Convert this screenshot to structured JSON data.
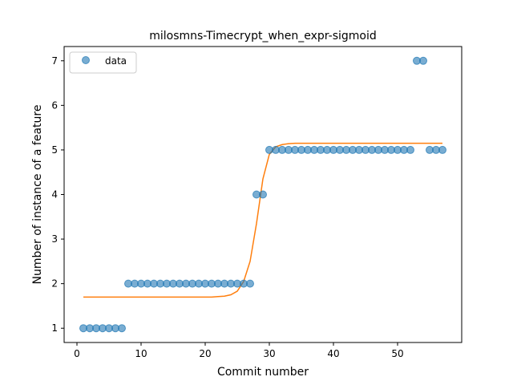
{
  "chart_data": {
    "type": "scatter",
    "title": "milosmns-Timecrypt_when_expr-sigmoid",
    "xlabel": "Commit number",
    "ylabel": "Number of instance of a feature",
    "xlim": [
      -2,
      60
    ],
    "ylim": [
      0.68,
      7.32
    ],
    "xticks": [
      0,
      10,
      20,
      30,
      40,
      50
    ],
    "yticks": [
      1,
      2,
      3,
      4,
      5,
      6,
      7
    ],
    "legend": {
      "entries": [
        "data"
      ],
      "placement": "top-left"
    },
    "series": [
      {
        "name": "data",
        "kind": "scatter",
        "color": "#1f77b4",
        "x": [
          1,
          2,
          3,
          4,
          5,
          6,
          7,
          8,
          9,
          10,
          11,
          12,
          13,
          14,
          15,
          16,
          17,
          18,
          19,
          20,
          21,
          22,
          23,
          24,
          25,
          26,
          27,
          28,
          29,
          30,
          31,
          32,
          33,
          34,
          35,
          36,
          37,
          38,
          39,
          40,
          41,
          42,
          43,
          44,
          45,
          46,
          47,
          48,
          49,
          50,
          51,
          52,
          53,
          54,
          55,
          56,
          57
        ],
        "y": [
          1,
          1,
          1,
          1,
          1,
          1,
          1,
          2,
          2,
          2,
          2,
          2,
          2,
          2,
          2,
          2,
          2,
          2,
          2,
          2,
          2,
          2,
          2,
          2,
          2,
          2,
          2,
          4,
          4,
          5,
          5,
          5,
          5,
          5,
          5,
          5,
          5,
          5,
          5,
          5,
          5,
          5,
          5,
          5,
          5,
          5,
          5,
          5,
          5,
          5,
          5,
          5,
          7,
          7,
          5,
          5,
          5
        ]
      },
      {
        "kind": "line",
        "color": "#ff7f0e",
        "x": [
          1,
          2,
          3,
          4,
          5,
          6,
          7,
          8,
          9,
          10,
          11,
          12,
          13,
          14,
          15,
          16,
          17,
          18,
          19,
          20,
          21,
          22,
          23,
          24,
          25,
          26,
          27,
          28,
          29,
          30,
          31,
          32,
          33,
          34,
          35,
          36,
          37,
          38,
          39,
          40,
          41,
          42,
          43,
          44,
          45,
          46,
          47,
          48,
          49,
          50,
          51,
          52,
          53,
          54,
          55,
          56,
          57
        ],
        "y": [
          1.7,
          1.7,
          1.7,
          1.7,
          1.7,
          1.7,
          1.7,
          1.7,
          1.7,
          1.7,
          1.7,
          1.7,
          1.7,
          1.7,
          1.7,
          1.7,
          1.7,
          1.7,
          1.7,
          1.7,
          1.7,
          1.71,
          1.72,
          1.75,
          1.83,
          2.05,
          2.5,
          3.35,
          4.35,
          4.9,
          5.07,
          5.12,
          5.14,
          5.15,
          5.15,
          5.15,
          5.15,
          5.15,
          5.15,
          5.15,
          5.15,
          5.15,
          5.15,
          5.15,
          5.15,
          5.15,
          5.15,
          5.15,
          5.15,
          5.15,
          5.15,
          5.15,
          5.15,
          5.15,
          5.15,
          5.15,
          5.15
        ]
      }
    ]
  }
}
